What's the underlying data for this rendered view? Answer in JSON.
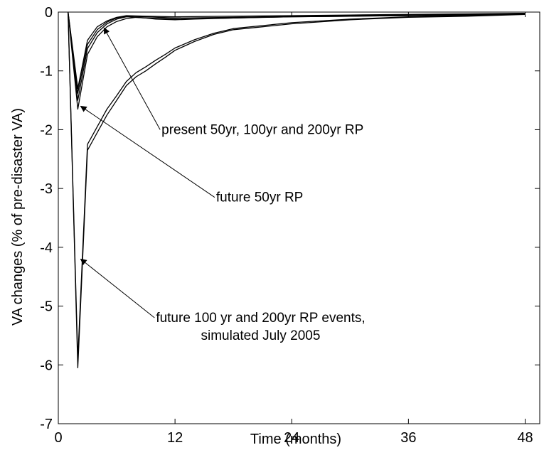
{
  "chart_data": {
    "type": "line",
    "title": "",
    "xlabel": "Time (months)",
    "ylabel": "VA changes (% of pre-disaster VA)",
    "xlim": [
      0,
      49.5
    ],
    "ylim": [
      -7,
      0
    ],
    "xticks": [
      0,
      12,
      24,
      36,
      48
    ],
    "yticks": [
      0,
      -1,
      -2,
      -3,
      -4,
      -5,
      -6,
      -7
    ],
    "grid": false,
    "legend": "none",
    "series": [
      {
        "x": [
          1,
          2,
          3,
          4,
          5,
          6,
          7,
          9,
          12,
          18,
          24,
          30,
          36,
          42,
          48
        ],
        "y": [
          0,
          -1.3,
          -0.48,
          -0.25,
          -0.15,
          -0.09,
          -0.06,
          -0.07,
          -0.08,
          -0.07,
          -0.06,
          -0.05,
          -0.04,
          -0.03,
          -0.02
        ]
      },
      {
        "x": [
          1,
          2,
          3,
          4,
          5,
          6,
          7,
          9,
          12,
          18,
          24,
          30,
          36,
          42,
          48
        ],
        "y": [
          0,
          -1.38,
          -0.55,
          -0.3,
          -0.17,
          -0.1,
          -0.07,
          -0.08,
          -0.1,
          -0.09,
          -0.07,
          -0.06,
          -0.05,
          -0.04,
          -0.02
        ]
      },
      {
        "x": [
          1,
          2,
          3,
          4,
          5,
          6,
          7,
          9,
          12,
          18,
          24,
          30,
          36,
          42,
          48
        ],
        "y": [
          0,
          -1.5,
          -0.62,
          -0.35,
          -0.2,
          -0.12,
          -0.08,
          -0.1,
          -0.12,
          -0.1,
          -0.08,
          -0.07,
          -0.06,
          -0.05,
          -0.03
        ]
      },
      {
        "x": [
          1,
          2,
          3,
          4,
          5,
          6,
          7,
          8,
          9,
          10,
          12,
          14,
          16,
          18,
          21,
          24,
          30,
          36,
          42,
          48
        ],
        "y": [
          0,
          -1.65,
          -0.72,
          -0.42,
          -0.25,
          -0.16,
          -0.11,
          -0.09,
          -0.1,
          -0.12,
          -0.13,
          -0.12,
          -0.11,
          -0.1,
          -0.09,
          -0.08,
          -0.07,
          -0.06,
          -0.05,
          -0.03
        ]
      },
      {
        "x": [
          1,
          2,
          3,
          4,
          5,
          6,
          7,
          8,
          9,
          10,
          11,
          12,
          14,
          16,
          18,
          21,
          24,
          30,
          36,
          42,
          48
        ],
        "y": [
          0,
          -6.05,
          -2.35,
          -2.05,
          -1.75,
          -1.5,
          -1.25,
          -1.1,
          -1.0,
          -0.88,
          -0.77,
          -0.65,
          -0.5,
          -0.38,
          -0.3,
          -0.25,
          -0.2,
          -0.13,
          -0.09,
          -0.07,
          -0.04
        ]
      },
      {
        "x": [
          1,
          2,
          3,
          4,
          5,
          6,
          7,
          8,
          9,
          10,
          11,
          12,
          14,
          16,
          18,
          21,
          24,
          30,
          36,
          42,
          48
        ],
        "y": [
          0,
          -5.9,
          -2.25,
          -1.95,
          -1.65,
          -1.42,
          -1.18,
          -1.03,
          -0.93,
          -0.82,
          -0.72,
          -0.61,
          -0.47,
          -0.36,
          -0.28,
          -0.23,
          -0.18,
          -0.12,
          -0.08,
          -0.06,
          -0.03
        ]
      }
    ],
    "annotations": [
      {
        "lines": [
          "present 50yr, 100yr and 200yr RP"
        ],
        "arrow_to": [
          4.7,
          -0.27
        ],
        "text_pos": [
          21,
          -2.0
        ]
      },
      {
        "lines": [
          "future 50yr RP"
        ],
        "arrow_to": [
          2.3,
          -1.6
        ],
        "text_pos": [
          20.7,
          -3.15
        ]
      },
      {
        "lines": [
          "future 100 yr and 200yr RP events,",
          "simulated July 2005"
        ],
        "arrow_to": [
          2.3,
          -4.2
        ],
        "text_pos": [
          20.8,
          -5.35
        ]
      }
    ]
  }
}
